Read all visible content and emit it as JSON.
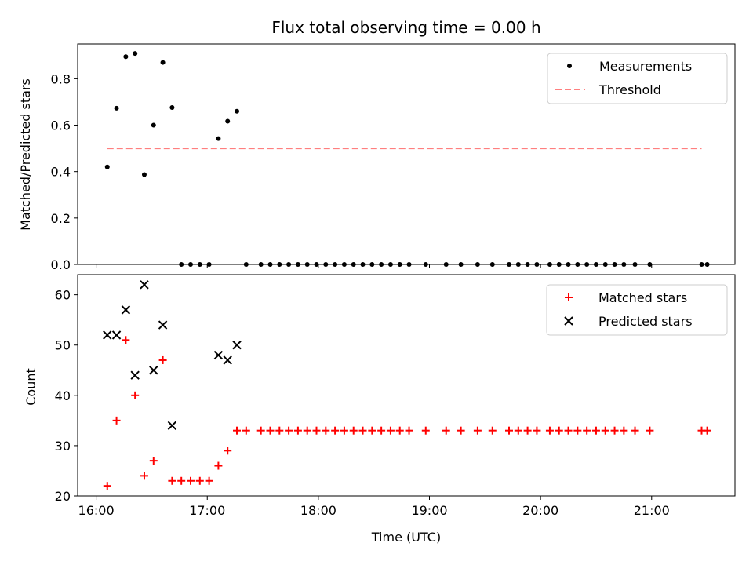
{
  "chart_data": [
    {
      "type": "scatter",
      "title": "Flux total observing time = 0.00 h",
      "xlabel": "",
      "ylabel": "Matched/Predicted stars",
      "ylim": [
        0,
        0.95
      ],
      "yticks": [
        "0.0",
        "0.2",
        "0.4",
        "0.6",
        "0.8"
      ],
      "xlim": [
        "15:50",
        "21:45"
      ],
      "xticks": [
        "16:00",
        "17:00",
        "18:00",
        "19:00",
        "20:00",
        "21:00"
      ],
      "grid": false,
      "legend": "top-right",
      "series": [
        {
          "name": "Measurements",
          "marker": "dot",
          "color": "#000000",
          "points": [
            [
              "16:06",
              0.42
            ],
            [
              "16:11",
              0.673
            ],
            [
              "16:16",
              0.895
            ],
            [
              "16:21",
              0.909
            ],
            [
              "16:26",
              0.387
            ],
            [
              "16:31",
              0.6
            ],
            [
              "16:36",
              0.87
            ],
            [
              "16:41",
              0.676
            ],
            [
              "16:46",
              0.0
            ],
            [
              "16:51",
              0.0
            ],
            [
              "16:56",
              0.0
            ],
            [
              "17:01",
              0.0
            ],
            [
              "17:06",
              0.542
            ],
            [
              "17:11",
              0.617
            ],
            [
              "17:16",
              0.66
            ],
            [
              "17:21",
              0.0
            ],
            [
              "17:29",
              0.0
            ],
            [
              "17:34",
              0.0
            ],
            [
              "17:39",
              0.0
            ],
            [
              "17:44",
              0.0
            ],
            [
              "17:49",
              0.0
            ],
            [
              "17:54",
              0.0
            ],
            [
              "17:59",
              0.0
            ],
            [
              "18:04",
              0.0
            ],
            [
              "18:09",
              0.0
            ],
            [
              "18:14",
              0.0
            ],
            [
              "18:19",
              0.0
            ],
            [
              "18:24",
              0.0
            ],
            [
              "18:29",
              0.0
            ],
            [
              "18:34",
              0.0
            ],
            [
              "18:39",
              0.0
            ],
            [
              "18:44",
              0.0
            ],
            [
              "18:49",
              0.0
            ],
            [
              "18:58",
              0.0
            ],
            [
              "19:09",
              0.0
            ],
            [
              "19:17",
              0.0
            ],
            [
              "19:26",
              0.0
            ],
            [
              "19:34",
              0.0
            ],
            [
              "19:43",
              0.0
            ],
            [
              "19:48",
              0.0
            ],
            [
              "19:53",
              0.0
            ],
            [
              "19:58",
              0.0
            ],
            [
              "20:05",
              0.0
            ],
            [
              "20:10",
              0.0
            ],
            [
              "20:15",
              0.0
            ],
            [
              "20:20",
              0.0
            ],
            [
              "20:25",
              0.0
            ],
            [
              "20:30",
              0.0
            ],
            [
              "20:35",
              0.0
            ],
            [
              "20:40",
              0.0
            ],
            [
              "20:45",
              0.0
            ],
            [
              "20:51",
              0.0
            ],
            [
              "20:59",
              0.0
            ],
            [
              "21:27",
              0.0
            ],
            [
              "21:30",
              0.0
            ]
          ]
        },
        {
          "name": "Threshold",
          "marker": "dashed-line",
          "color": "#ff7f7f",
          "points": [
            [
              "16:06",
              0.5
            ],
            [
              "21:27",
              0.5
            ]
          ]
        }
      ]
    },
    {
      "type": "scatter",
      "title": "",
      "xlabel": "Time (UTC)",
      "ylabel": "Count",
      "ylim": [
        20,
        64
      ],
      "yticks": [
        "20",
        "30",
        "40",
        "50",
        "60"
      ],
      "xlim": [
        "15:50",
        "21:45"
      ],
      "xticks": [
        "16:00",
        "17:00",
        "18:00",
        "19:00",
        "20:00",
        "21:00"
      ],
      "grid": false,
      "legend": "top-right",
      "series": [
        {
          "name": "Matched stars",
          "marker": "plus",
          "color": "#ff0000",
          "points": [
            [
              "16:06",
              22
            ],
            [
              "16:11",
              35
            ],
            [
              "16:16",
              51
            ],
            [
              "16:21",
              40
            ],
            [
              "16:26",
              24
            ],
            [
              "16:31",
              27
            ],
            [
              "16:36",
              47
            ],
            [
              "16:41",
              23
            ],
            [
              "16:46",
              23
            ],
            [
              "16:51",
              23
            ],
            [
              "16:56",
              23
            ],
            [
              "17:01",
              23
            ],
            [
              "17:06",
              26
            ],
            [
              "17:11",
              29
            ],
            [
              "17:16",
              33
            ],
            [
              "17:21",
              33
            ],
            [
              "17:29",
              33
            ],
            [
              "17:34",
              33
            ],
            [
              "17:39",
              33
            ],
            [
              "17:44",
              33
            ],
            [
              "17:49",
              33
            ],
            [
              "17:54",
              33
            ],
            [
              "17:59",
              33
            ],
            [
              "18:04",
              33
            ],
            [
              "18:09",
              33
            ],
            [
              "18:14",
              33
            ],
            [
              "18:19",
              33
            ],
            [
              "18:24",
              33
            ],
            [
              "18:29",
              33
            ],
            [
              "18:34",
              33
            ],
            [
              "18:39",
              33
            ],
            [
              "18:44",
              33
            ],
            [
              "18:49",
              33
            ],
            [
              "18:58",
              33
            ],
            [
              "19:09",
              33
            ],
            [
              "19:17",
              33
            ],
            [
              "19:26",
              33
            ],
            [
              "19:34",
              33
            ],
            [
              "19:43",
              33
            ],
            [
              "19:48",
              33
            ],
            [
              "19:53",
              33
            ],
            [
              "19:58",
              33
            ],
            [
              "20:05",
              33
            ],
            [
              "20:10",
              33
            ],
            [
              "20:15",
              33
            ],
            [
              "20:20",
              33
            ],
            [
              "20:25",
              33
            ],
            [
              "20:30",
              33
            ],
            [
              "20:35",
              33
            ],
            [
              "20:40",
              33
            ],
            [
              "20:45",
              33
            ],
            [
              "20:51",
              33
            ],
            [
              "20:59",
              33
            ],
            [
              "21:27",
              33
            ],
            [
              "21:30",
              33
            ]
          ]
        },
        {
          "name": "Predicted stars",
          "marker": "x",
          "color": "#000000",
          "points": [
            [
              "16:06",
              52
            ],
            [
              "16:11",
              52
            ],
            [
              "16:16",
              57
            ],
            [
              "16:21",
              44
            ],
            [
              "16:26",
              62
            ],
            [
              "16:31",
              45
            ],
            [
              "16:36",
              54
            ],
            [
              "16:41",
              34
            ],
            [
              "17:06",
              48
            ],
            [
              "17:11",
              47
            ],
            [
              "17:16",
              50
            ]
          ]
        }
      ]
    }
  ]
}
